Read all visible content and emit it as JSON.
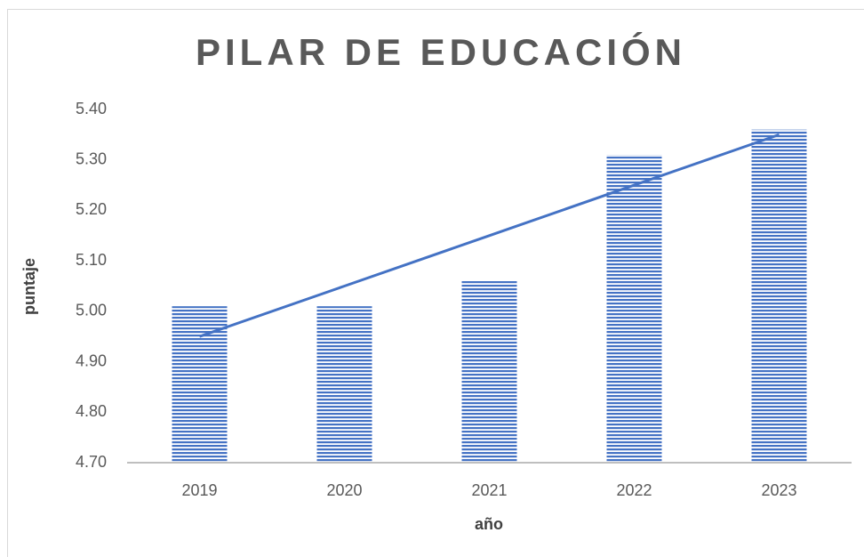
{
  "chart_data": {
    "type": "bar",
    "title": "PILAR DE EDUCACIÓN",
    "x_label": "año",
    "y_label": "puntaje",
    "categories": [
      "2019",
      "2020",
      "2021",
      "2022",
      "2023"
    ],
    "values": [
      5.01,
      5.01,
      5.06,
      5.31,
      5.36
    ],
    "color": "#4472c4",
    "trendline": {
      "color": "#4472c4",
      "values": [
        4.95,
        5.05,
        5.15,
        5.25,
        5.35
      ]
    },
    "ylim": [
      4.7,
      5.4
    ],
    "yticks": [
      {
        "value": 4.7,
        "label": "4.70"
      },
      {
        "value": 4.8,
        "label": "4.80"
      },
      {
        "value": 4.9,
        "label": "4.90"
      },
      {
        "value": 5.0,
        "label": "5.00"
      },
      {
        "value": 5.1,
        "label": "5.10"
      },
      {
        "value": 5.2,
        "label": "5.20"
      },
      {
        "value": 5.3,
        "label": "5.30"
      },
      {
        "value": 5.4,
        "label": "5.40"
      }
    ],
    "grid": false
  }
}
